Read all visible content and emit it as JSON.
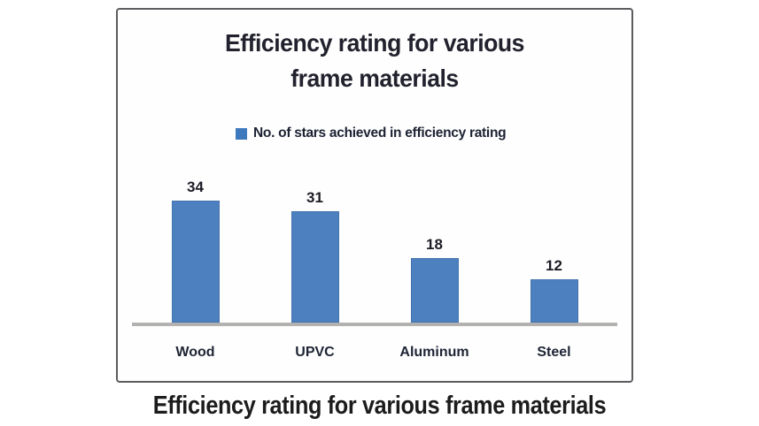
{
  "figure": {
    "caption": "Efficiency rating for various frame materials"
  },
  "chart": {
    "title_line1": "Efficiency rating for various",
    "title_line2": "frame materials",
    "legend_label": "No. of stars achieved in efficiency rating"
  },
  "chart_data": {
    "type": "bar",
    "title": "Efficiency rating for various frame materials",
    "categories": [
      "Wood",
      "UPVC",
      "Aluminum",
      "Steel"
    ],
    "values": [
      34,
      31,
      18,
      12
    ],
    "series": [
      {
        "name": "No. of stars achieved in efficiency rating",
        "values": [
          34,
          31,
          18,
          12
        ]
      }
    ],
    "data_labels": [
      34,
      31,
      18,
      12
    ],
    "xlabel": "",
    "ylabel": "",
    "ylim": [
      0,
      36
    ],
    "grid": false,
    "y_axis_visible": false,
    "legend_position": "top-center",
    "bar_color": "#4d80be",
    "axis_line_color": "#b3b2b0"
  }
}
